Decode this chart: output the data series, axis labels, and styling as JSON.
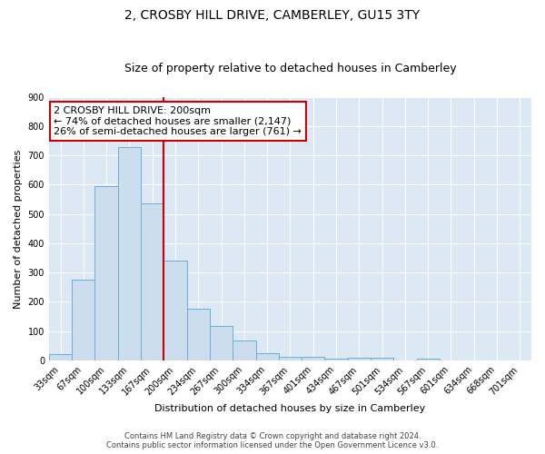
{
  "title": "2, CROSBY HILL DRIVE, CAMBERLEY, GU15 3TY",
  "subtitle": "Size of property relative to detached houses in Camberley",
  "xlabel": "Distribution of detached houses by size in Camberley",
  "ylabel": "Number of detached properties",
  "bar_labels": [
    "33sqm",
    "67sqm",
    "100sqm",
    "133sqm",
    "167sqm",
    "200sqm",
    "234sqm",
    "267sqm",
    "300sqm",
    "334sqm",
    "367sqm",
    "401sqm",
    "434sqm",
    "467sqm",
    "501sqm",
    "534sqm",
    "567sqm",
    "601sqm",
    "634sqm",
    "668sqm",
    "701sqm"
  ],
  "bar_values": [
    22,
    275,
    595,
    730,
    535,
    340,
    178,
    118,
    68,
    25,
    13,
    13,
    7,
    9,
    9,
    0,
    7,
    0,
    0,
    0,
    0
  ],
  "bar_color": "#ccdded",
  "bar_edge_color": "#6aaed6",
  "vline_color": "#cc0000",
  "vline_x": 4.5,
  "annotation_text": "2 CROSBY HILL DRIVE: 200sqm\n← 74% of detached houses are smaller (2,147)\n26% of semi-detached houses are larger (761) →",
  "annotation_box_facecolor": "#ffffff",
  "annotation_box_edgecolor": "#cc0000",
  "ylim": [
    0,
    900
  ],
  "yticks": [
    0,
    100,
    200,
    300,
    400,
    500,
    600,
    700,
    800,
    900
  ],
  "footer_line1": "Contains HM Land Registry data © Crown copyright and database right 2024.",
  "footer_line2": "Contains public sector information licensed under the Open Government Licence v3.0.",
  "plot_bg_color": "#dce9f5",
  "fig_bg_color": "#ffffff",
  "title_fontsize": 10,
  "subtitle_fontsize": 9,
  "ylabel_fontsize": 8,
  "xlabel_fontsize": 8,
  "tick_fontsize": 7,
  "footer_fontsize": 6,
  "annotation_fontsize": 8
}
